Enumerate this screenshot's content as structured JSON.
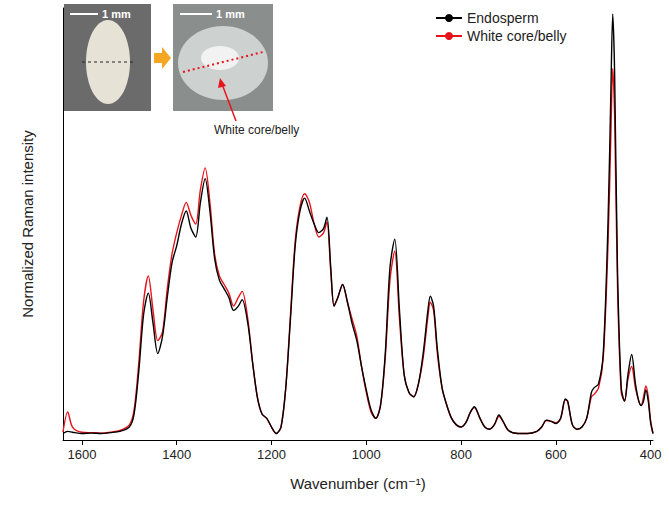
{
  "chart_data": {
    "type": "line",
    "x_label": "Wavenumber (cm⁻¹)",
    "y_label": "Normalized Raman intensity",
    "xlim": [
      1640,
      395
    ],
    "xticks": [
      1600,
      1400,
      1200,
      1000,
      800,
      600,
      400
    ],
    "ylim": [
      0,
      100
    ],
    "tick_labels": "x",
    "grid": false,
    "legend": "upper right",
    "annotations": [
      "1 mm",
      "1 mm",
      "White core/belly"
    ],
    "x": [
      1640,
      1630,
      1620,
      1600,
      1580,
      1560,
      1540,
      1520,
      1500,
      1490,
      1480,
      1470,
      1460,
      1450,
      1440,
      1430,
      1420,
      1410,
      1400,
      1390,
      1380,
      1370,
      1360,
      1350,
      1340,
      1330,
      1320,
      1310,
      1300,
      1290,
      1280,
      1270,
      1262,
      1250,
      1240,
      1230,
      1220,
      1210,
      1200,
      1190,
      1180,
      1170,
      1160,
      1150,
      1140,
      1130,
      1120,
      1110,
      1100,
      1090,
      1083,
      1075,
      1068,
      1060,
      1050,
      1040,
      1030,
      1020,
      1010,
      1000,
      990,
      980,
      970,
      960,
      950,
      940,
      930,
      920,
      910,
      900,
      890,
      880,
      870,
      865,
      858,
      850,
      840,
      830,
      820,
      810,
      800,
      790,
      780,
      772,
      760,
      750,
      740,
      730,
      720,
      710,
      700,
      680,
      660,
      640,
      630,
      620,
      610,
      600,
      590,
      580,
      575,
      565,
      555,
      545,
      535,
      525,
      520,
      510,
      500,
      490,
      484,
      480,
      476,
      470,
      462,
      455,
      448,
      440,
      432,
      425,
      420,
      415,
      410,
      405,
      400,
      395
    ],
    "series": [
      {
        "name": "Endosperm",
        "color": "#000000",
        "values": [
          1.5,
          2.0,
          1.8,
          1.5,
          1.6,
          1.5,
          1.7,
          2.0,
          3.0,
          6,
          16,
          29,
          34,
          27,
          20,
          24,
          33,
          41,
          45,
          50,
          53,
          49,
          47,
          55,
          60.5,
          53,
          42,
          37,
          35,
          33,
          30,
          31,
          32.5,
          27,
          18,
          10,
          6,
          5,
          3,
          1.5,
          3,
          12,
          28,
          45,
          53,
          56,
          53,
          50,
          48,
          49,
          51.6,
          40,
          31,
          33,
          36,
          32,
          27,
          23,
          17,
          11.6,
          7,
          5,
          8,
          20,
          40,
          46.5,
          30,
          15,
          11,
          10,
          13,
          20,
          30,
          33.3,
          31,
          21,
          12,
          8,
          5,
          3.5,
          3,
          4,
          6.5,
          7.7,
          5,
          3,
          2.5,
          3.5,
          5.8,
          4,
          2.2,
          1.5,
          1.5,
          2,
          3,
          4.6,
          4.3,
          3.8,
          5,
          9.5,
          9,
          3.5,
          2.5,
          3,
          5,
          11,
          12,
          13,
          20,
          50,
          80,
          98.6,
          85,
          40,
          12,
          9,
          15,
          19.8,
          13,
          9,
          8,
          9,
          11.6,
          9,
          4,
          1.5
        ]
      },
      {
        "name": "White core/belly",
        "color": "#e8141b",
        "values": [
          1.8,
          6.5,
          3.0,
          1.8,
          1.7,
          1.6,
          1.8,
          2.2,
          3.5,
          7,
          18,
          32,
          38,
          30,
          23,
          25,
          35,
          43,
          48,
          52,
          55,
          52,
          50,
          58,
          63,
          55,
          43,
          38,
          36,
          34,
          31,
          33,
          34.4,
          28,
          18,
          10,
          6,
          5,
          3,
          1.5,
          3,
          12,
          29,
          46,
          54,
          57,
          55,
          50,
          47,
          48,
          50.5,
          39,
          31,
          33,
          36,
          32,
          28,
          24,
          17,
          11,
          6.5,
          5,
          8,
          19,
          37,
          43.7,
          28,
          15,
          11,
          10,
          13,
          19,
          28.5,
          31.9,
          30,
          20,
          12,
          8,
          5,
          3.5,
          3,
          4,
          6.5,
          7.5,
          5,
          3,
          2.5,
          3.5,
          5.5,
          4,
          2.2,
          1.5,
          1.5,
          2,
          3,
          4.5,
          4.3,
          4.0,
          5,
          9.3,
          8.8,
          3.5,
          2.5,
          3,
          5,
          10,
          10.5,
          12,
          19,
          45,
          70,
          86,
          75,
          36,
          11,
          9,
          14,
          17,
          12,
          9,
          8,
          10,
          12.5,
          10,
          4.5,
          1.5
        ]
      }
    ]
  }
}
